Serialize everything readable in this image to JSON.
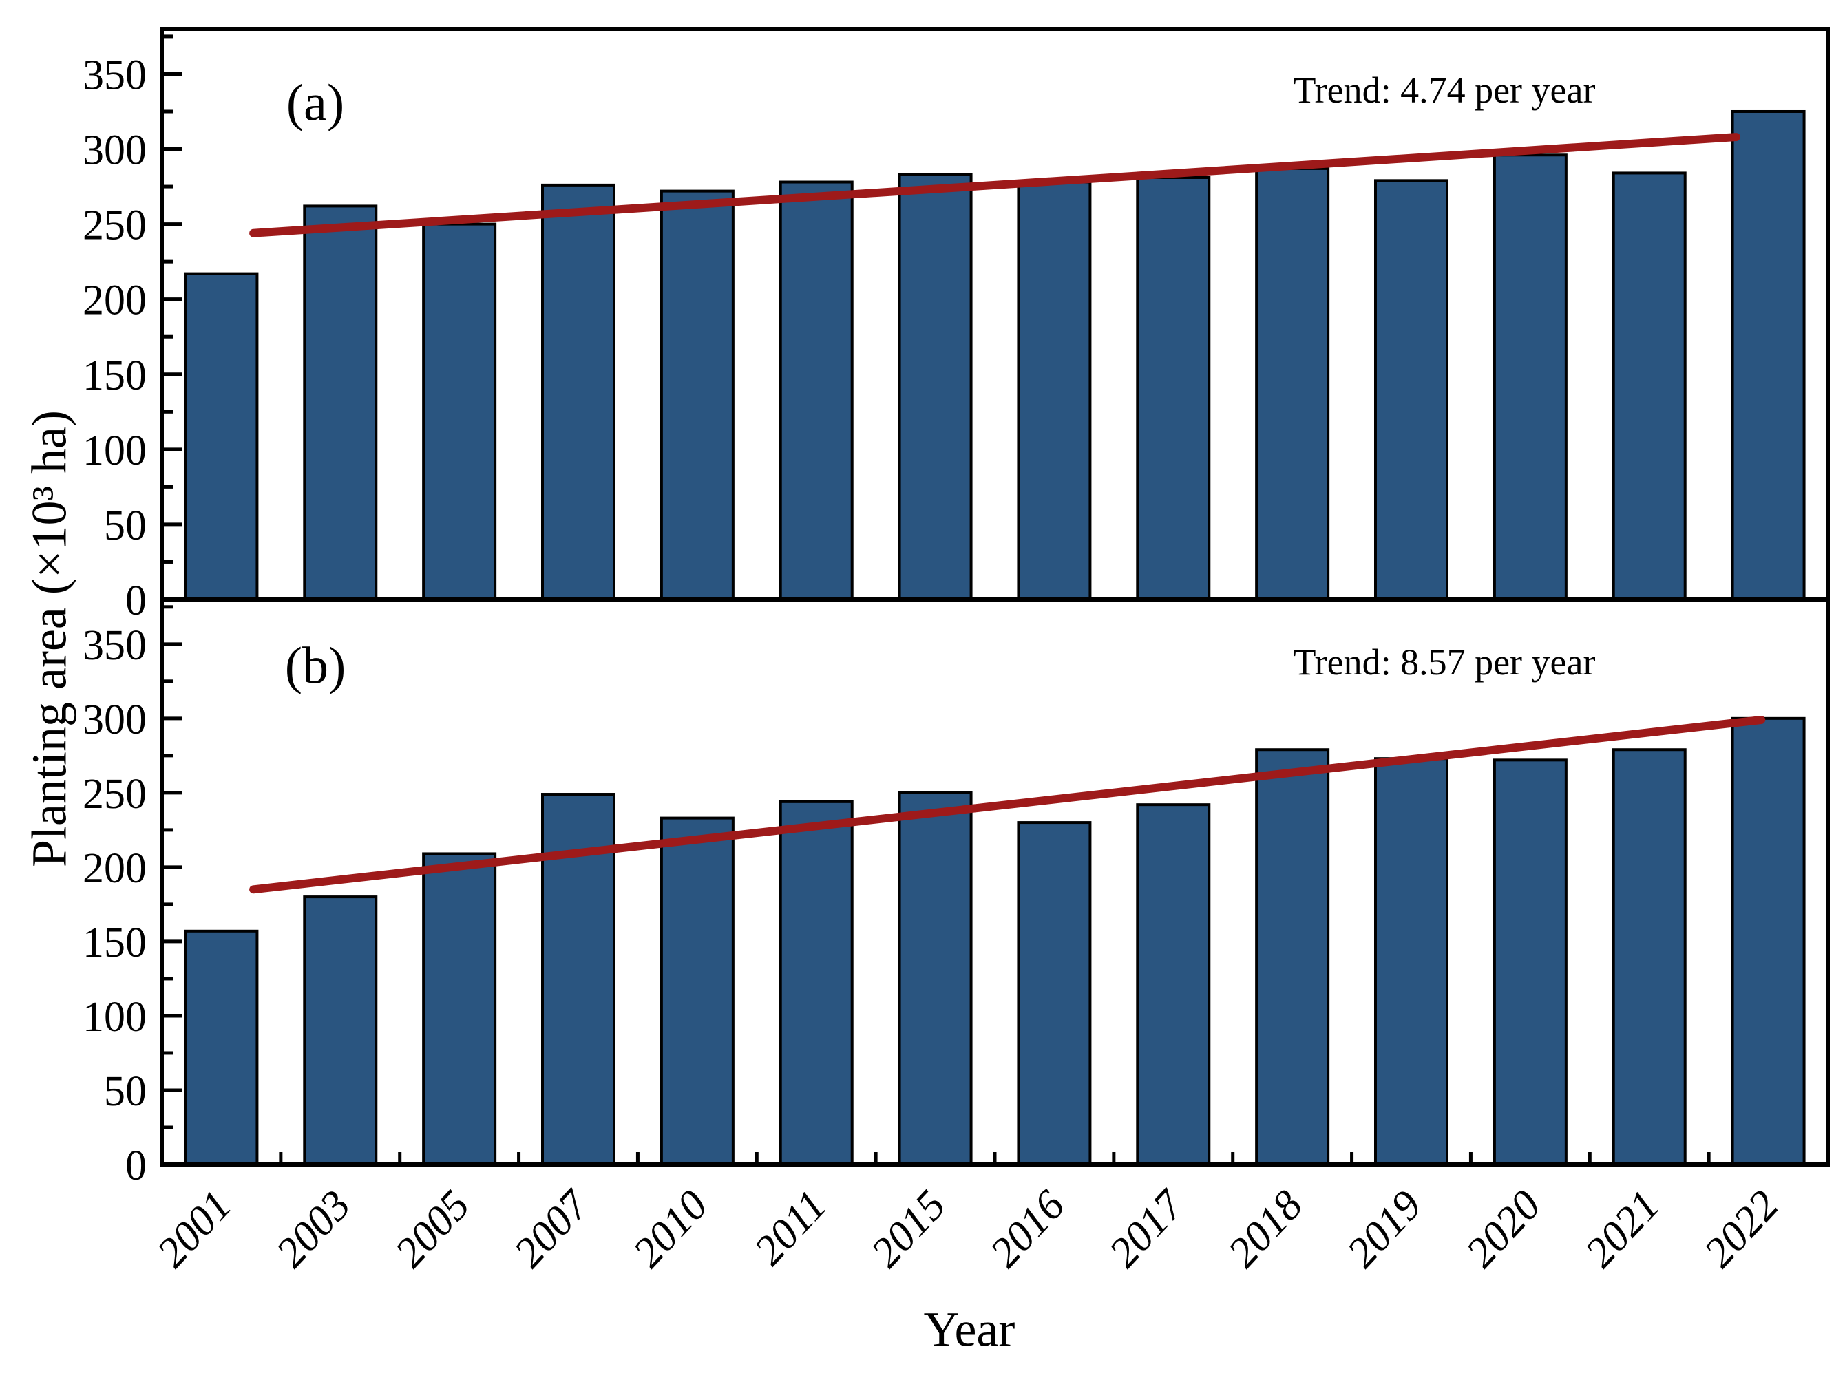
{
  "figure_title": "",
  "colors": {
    "bar_fill": "#2a5580",
    "bar_border": "#000000",
    "trend_line": "#9e1a1a",
    "axis": "#000000",
    "text": "#000000",
    "background": "#ffffff"
  },
  "chart_data": {
    "type": "bar",
    "title": "",
    "xlabel": "Year",
    "ylabel": "Planting area (×10³ ha)",
    "categories": [
      "2001",
      "2003",
      "2005",
      "2007",
      "2010",
      "2011",
      "2015",
      "2016",
      "2017",
      "2018",
      "2019",
      "2020",
      "2021",
      "2022"
    ],
    "ylim": [
      0,
      380
    ],
    "y_major_ticks": [
      0,
      50,
      100,
      150,
      200,
      250,
      300,
      350
    ],
    "y_minor_step": 25,
    "grid": false,
    "legend_position": "none",
    "panels": [
      {
        "label": "(a)",
        "trend_label": "Trend: 4.74 per year",
        "trend_per_year": 4.74,
        "values": [
          217,
          262,
          250,
          276,
          272,
          278,
          283,
          278,
          281,
          287,
          279,
          296,
          284,
          325
        ],
        "trend_endpoints_value": [
          244,
          308
        ],
        "trend_endpoints_xfrac": [
          0.055,
          0.945
        ]
      },
      {
        "label": "(b)",
        "trend_label": "Trend: 8.57 per year",
        "trend_per_year": 8.57,
        "values": [
          157,
          180,
          209,
          249,
          233,
          244,
          250,
          230,
          242,
          279,
          273,
          272,
          279,
          300
        ],
        "trend_endpoints_value": [
          185,
          299
        ],
        "trend_endpoints_xfrac": [
          0.055,
          0.96
        ]
      }
    ]
  }
}
